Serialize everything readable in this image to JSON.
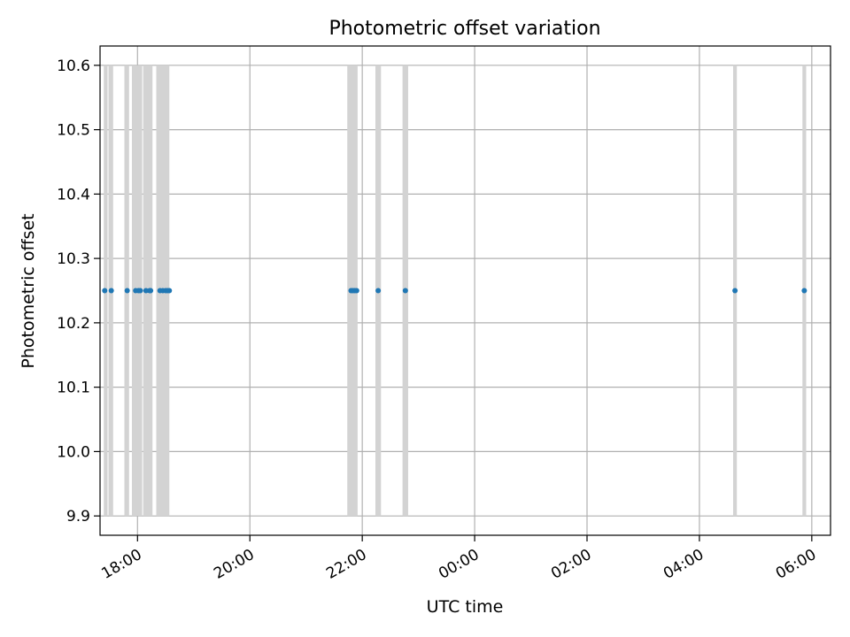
{
  "chart_data": {
    "type": "scatter",
    "title": "Photometric offset variation",
    "xlabel": "UTC time",
    "ylabel": "Photometric offset",
    "grid": true,
    "legend": "none",
    "x_axis": {
      "kind": "time",
      "range": [
        "17:20",
        "06:20"
      ],
      "ticks": [
        "18:00",
        "20:00",
        "22:00",
        "00:00",
        "02:00",
        "04:00",
        "06:00"
      ]
    },
    "y_axis": {
      "range": [
        9.87,
        10.63
      ],
      "ticks": [
        "9.9",
        "10.0",
        "10.1",
        "10.2",
        "10.3",
        "10.4",
        "10.5",
        "10.6"
      ]
    },
    "interval_band": {
      "low": 9.9,
      "high": 10.6,
      "color": "#d3d3d3"
    },
    "points": {
      "color": "#1f77b4",
      "x": [
        "17:25",
        "17:32",
        "17:49",
        "17:58",
        "18:01",
        "18:03",
        "18:09",
        "18:13",
        "18:14",
        "18:24",
        "18:27",
        "18:30",
        "18:32",
        "18:34",
        "21:48",
        "21:50",
        "21:52",
        "21:54",
        "22:17",
        "22:46",
        "04:38",
        "05:52"
      ],
      "y": [
        10.25,
        10.25,
        10.25,
        10.25,
        10.25,
        10.25,
        10.25,
        10.25,
        10.25,
        10.25,
        10.25,
        10.25,
        10.25,
        10.25,
        10.25,
        10.25,
        10.25,
        10.25,
        10.25,
        10.25,
        10.25,
        10.25
      ]
    },
    "bands": [
      [
        "17:24",
        "17:28"
      ],
      [
        "17:29",
        "17:34"
      ],
      [
        "17:46",
        "17:51"
      ],
      [
        "17:54",
        "18:05"
      ],
      [
        "18:06",
        "18:16"
      ],
      [
        "18:20",
        "18:34"
      ],
      [
        "21:44",
        "21:55"
      ],
      [
        "22:14",
        "22:20"
      ],
      [
        "22:43",
        "22:49"
      ],
      [
        "04:36",
        "04:40"
      ],
      [
        "05:50",
        "05:54"
      ]
    ]
  }
}
